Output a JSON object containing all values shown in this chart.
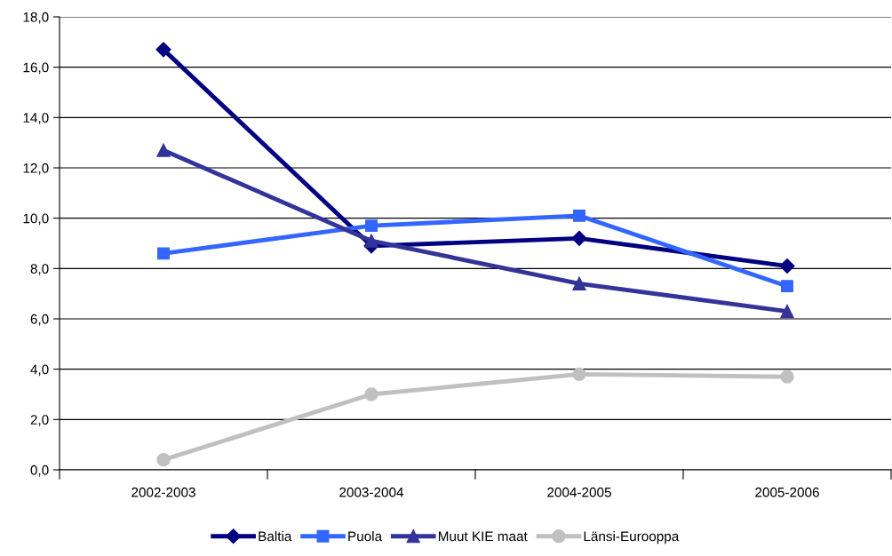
{
  "chart_data": {
    "type": "line",
    "categories": [
      "2002-2003",
      "2003-2004",
      "2004-2005",
      "2005-2006"
    ],
    "series": [
      {
        "name": "Baltia",
        "color": "#000080",
        "marker": "diamond",
        "values": [
          16.7,
          8.9,
          9.2,
          8.1
        ]
      },
      {
        "name": "Puola",
        "color": "#3366ff",
        "marker": "square",
        "values": [
          8.6,
          9.7,
          10.1,
          7.3
        ]
      },
      {
        "name": "Muut KIE maat",
        "color": "#333399",
        "marker": "triangle",
        "values": [
          12.7,
          9.1,
          7.4,
          6.3
        ]
      },
      {
        "name": "Länsi-Eurooppa",
        "color": "#c0c0c0",
        "marker": "circle",
        "values": [
          0.4,
          3.0,
          3.8,
          3.7
        ]
      }
    ],
    "ylim": [
      0,
      18
    ],
    "yticks": [
      {
        "value": 0,
        "label": "0,0"
      },
      {
        "value": 2,
        "label": "2,0"
      },
      {
        "value": 4,
        "label": "4,0"
      },
      {
        "value": 6,
        "label": "6,0"
      },
      {
        "value": 8,
        "label": "8,0"
      },
      {
        "value": 10,
        "label": "10,0"
      },
      {
        "value": 12,
        "label": "12,0"
      },
      {
        "value": 14,
        "label": "14,0"
      },
      {
        "value": 16,
        "label": "16,0"
      },
      {
        "value": 18,
        "label": "18,0"
      }
    ],
    "grid": "y",
    "legend": "bottom",
    "line_style": "solid"
  }
}
